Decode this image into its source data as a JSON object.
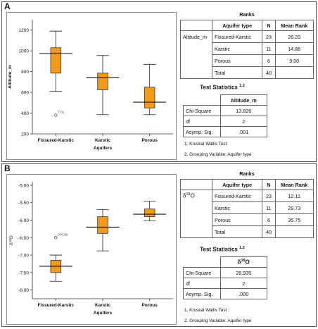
{
  "panels": [
    {
      "label": "A",
      "chart_data": {
        "type": "boxplot",
        "xlabel": "Aquifers",
        "ylabel": "Altitude_m",
        "ylim": [
          200,
          1300
        ],
        "yticks": [
          200,
          400,
          600,
          800,
          1000,
          1200
        ],
        "categories": [
          "Fissured-Karstic",
          "Karstic",
          "Porous"
        ],
        "boxes": [
          {
            "category": "Fissured-Karstic",
            "min": 610,
            "q1": 785,
            "median": 975,
            "q3": 1030,
            "max": 1190
          },
          {
            "category": "Karstic",
            "min": 385,
            "q1": 625,
            "median": 740,
            "q3": 785,
            "max": 955
          },
          {
            "category": "Porous",
            "min": 385,
            "q1": 450,
            "median": 505,
            "q3": 650,
            "max": 870
          }
        ],
        "outliers": [
          {
            "category": "Fissured-Karstic",
            "value": 380,
            "label": "7.01"
          }
        ],
        "box_color": "#f29a1d"
      },
      "ranks": {
        "caption": "Ranks",
        "headers": [
          "Aquifer type",
          "N",
          "Mean Rank"
        ],
        "variable": "Altitude_m",
        "rows": [
          {
            "type": "Fissured-Karstic",
            "n": "23",
            "mean": "26.20"
          },
          {
            "type": "Karstic",
            "n": "11",
            "mean": "14.86"
          },
          {
            "type": "Porous",
            "n": "6",
            "mean": "9.00"
          },
          {
            "type": "Total",
            "n": "40",
            "mean": ""
          }
        ]
      },
      "test": {
        "title": "Test Statistics",
        "sup": "1,2",
        "column": "Altitude_m",
        "rows": [
          {
            "label": "Chi-Square",
            "value": "13.826"
          },
          {
            "label": "df",
            "value": "2"
          },
          {
            "label": "Asymp. Sig.",
            "value": ".001"
          }
        ],
        "notes": [
          "1. Kruskal Wallis Test",
          "2. Grouping Variable: Aquifer type"
        ]
      }
    },
    {
      "label": "B",
      "chart_data": {
        "type": "boxplot",
        "xlabel": "Aquifers",
        "ylabel": "δ18O",
        "ylim": [
          -8.25,
          -4.9
        ],
        "yticks": [
          -8.0,
          -7.5,
          -7.0,
          -6.5,
          -6.0,
          -5.5,
          -5.0
        ],
        "ytick_labels": [
          "-8.00",
          "-7.50",
          "-7.00",
          "-6.50",
          "-6.00",
          "-5.50",
          "-5.00"
        ],
        "categories": [
          "Fissured-Karstic",
          "Karstic",
          "Porous"
        ],
        "boxes": [
          {
            "category": "Fissured-Karstic",
            "min": -7.75,
            "q1": -7.5,
            "median": -7.32,
            "q3": -7.15,
            "max": -7.0
          },
          {
            "category": "Karstic",
            "min": -6.88,
            "q1": -6.38,
            "median": -6.2,
            "q3": -5.9,
            "max": -5.7
          },
          {
            "category": "Porous",
            "min": -6.02,
            "q1": -5.9,
            "median": -5.83,
            "q3": -5.68,
            "max": -5.46
          }
        ],
        "outliers": [
          {
            "category": "Fissured-Karstic",
            "value": -6.5,
            "label": "070.00"
          }
        ],
        "box_color": "#f29a1d"
      },
      "ranks": {
        "caption": "Ranks",
        "headers": [
          "Aquifer type",
          "N",
          "Mean Rank"
        ],
        "variable": "δ18O",
        "rows": [
          {
            "type": "Fissured-Karstic",
            "n": "23",
            "mean": "12.11"
          },
          {
            "type": "Karstic",
            "n": "11",
            "mean": "29.73"
          },
          {
            "type": "Porous",
            "n": "6",
            "mean": "35.75"
          },
          {
            "type": "Total",
            "n": "40",
            "mean": ""
          }
        ]
      },
      "test": {
        "title": "Test Statistics",
        "sup": "1,2",
        "column": "δ18O",
        "rows": [
          {
            "label": "Chi-Square",
            "value": "28.935"
          },
          {
            "label": "df",
            "value": "2"
          },
          {
            "label": "Asymp. Sig.",
            "value": ".000"
          }
        ],
        "notes": [
          "1. Kruskal Wallis Test",
          "2. Grouping Variable: Aquifer type"
        ]
      }
    }
  ]
}
